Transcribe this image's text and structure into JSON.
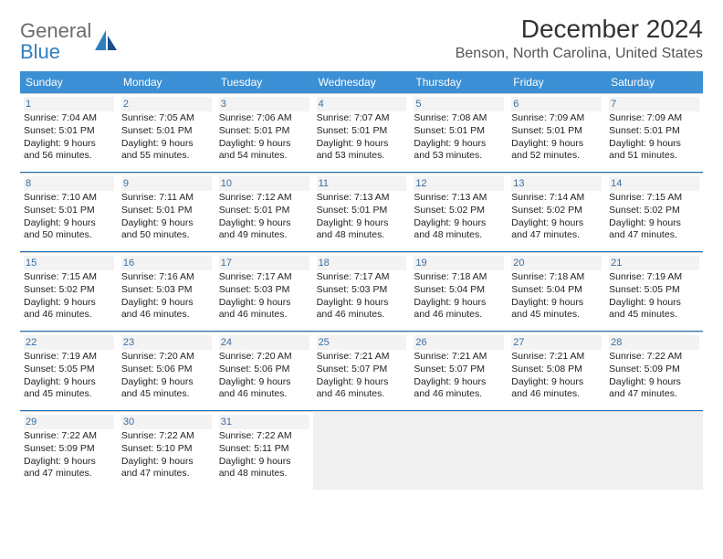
{
  "logo": {
    "top": "General",
    "bottom": "Blue"
  },
  "title": "December 2024",
  "subtitle": "Benson, North Carolina, United States",
  "colors": {
    "header_bg": "#3b8fd4",
    "week_divider": "#1f73b8",
    "cell_num": "#3b6ea0",
    "daynum_bg": "#f3f3f3",
    "blank_bg": "#f0f0f0"
  },
  "day_headers": [
    "Sunday",
    "Monday",
    "Tuesday",
    "Wednesday",
    "Thursday",
    "Friday",
    "Saturday"
  ],
  "days": [
    {
      "n": "1",
      "sr": "Sunrise: 7:04 AM",
      "ss": "Sunset: 5:01 PM",
      "d1": "Daylight: 9 hours",
      "d2": "and 56 minutes."
    },
    {
      "n": "2",
      "sr": "Sunrise: 7:05 AM",
      "ss": "Sunset: 5:01 PM",
      "d1": "Daylight: 9 hours",
      "d2": "and 55 minutes."
    },
    {
      "n": "3",
      "sr": "Sunrise: 7:06 AM",
      "ss": "Sunset: 5:01 PM",
      "d1": "Daylight: 9 hours",
      "d2": "and 54 minutes."
    },
    {
      "n": "4",
      "sr": "Sunrise: 7:07 AM",
      "ss": "Sunset: 5:01 PM",
      "d1": "Daylight: 9 hours",
      "d2": "and 53 minutes."
    },
    {
      "n": "5",
      "sr": "Sunrise: 7:08 AM",
      "ss": "Sunset: 5:01 PM",
      "d1": "Daylight: 9 hours",
      "d2": "and 53 minutes."
    },
    {
      "n": "6",
      "sr": "Sunrise: 7:09 AM",
      "ss": "Sunset: 5:01 PM",
      "d1": "Daylight: 9 hours",
      "d2": "and 52 minutes."
    },
    {
      "n": "7",
      "sr": "Sunrise: 7:09 AM",
      "ss": "Sunset: 5:01 PM",
      "d1": "Daylight: 9 hours",
      "d2": "and 51 minutes."
    },
    {
      "n": "8",
      "sr": "Sunrise: 7:10 AM",
      "ss": "Sunset: 5:01 PM",
      "d1": "Daylight: 9 hours",
      "d2": "and 50 minutes."
    },
    {
      "n": "9",
      "sr": "Sunrise: 7:11 AM",
      "ss": "Sunset: 5:01 PM",
      "d1": "Daylight: 9 hours",
      "d2": "and 50 minutes."
    },
    {
      "n": "10",
      "sr": "Sunrise: 7:12 AM",
      "ss": "Sunset: 5:01 PM",
      "d1": "Daylight: 9 hours",
      "d2": "and 49 minutes."
    },
    {
      "n": "11",
      "sr": "Sunrise: 7:13 AM",
      "ss": "Sunset: 5:01 PM",
      "d1": "Daylight: 9 hours",
      "d2": "and 48 minutes."
    },
    {
      "n": "12",
      "sr": "Sunrise: 7:13 AM",
      "ss": "Sunset: 5:02 PM",
      "d1": "Daylight: 9 hours",
      "d2": "and 48 minutes."
    },
    {
      "n": "13",
      "sr": "Sunrise: 7:14 AM",
      "ss": "Sunset: 5:02 PM",
      "d1": "Daylight: 9 hours",
      "d2": "and 47 minutes."
    },
    {
      "n": "14",
      "sr": "Sunrise: 7:15 AM",
      "ss": "Sunset: 5:02 PM",
      "d1": "Daylight: 9 hours",
      "d2": "and 47 minutes."
    },
    {
      "n": "15",
      "sr": "Sunrise: 7:15 AM",
      "ss": "Sunset: 5:02 PM",
      "d1": "Daylight: 9 hours",
      "d2": "and 46 minutes."
    },
    {
      "n": "16",
      "sr": "Sunrise: 7:16 AM",
      "ss": "Sunset: 5:03 PM",
      "d1": "Daylight: 9 hours",
      "d2": "and 46 minutes."
    },
    {
      "n": "17",
      "sr": "Sunrise: 7:17 AM",
      "ss": "Sunset: 5:03 PM",
      "d1": "Daylight: 9 hours",
      "d2": "and 46 minutes."
    },
    {
      "n": "18",
      "sr": "Sunrise: 7:17 AM",
      "ss": "Sunset: 5:03 PM",
      "d1": "Daylight: 9 hours",
      "d2": "and 46 minutes."
    },
    {
      "n": "19",
      "sr": "Sunrise: 7:18 AM",
      "ss": "Sunset: 5:04 PM",
      "d1": "Daylight: 9 hours",
      "d2": "and 46 minutes."
    },
    {
      "n": "20",
      "sr": "Sunrise: 7:18 AM",
      "ss": "Sunset: 5:04 PM",
      "d1": "Daylight: 9 hours",
      "d2": "and 45 minutes."
    },
    {
      "n": "21",
      "sr": "Sunrise: 7:19 AM",
      "ss": "Sunset: 5:05 PM",
      "d1": "Daylight: 9 hours",
      "d2": "and 45 minutes."
    },
    {
      "n": "22",
      "sr": "Sunrise: 7:19 AM",
      "ss": "Sunset: 5:05 PM",
      "d1": "Daylight: 9 hours",
      "d2": "and 45 minutes."
    },
    {
      "n": "23",
      "sr": "Sunrise: 7:20 AM",
      "ss": "Sunset: 5:06 PM",
      "d1": "Daylight: 9 hours",
      "d2": "and 45 minutes."
    },
    {
      "n": "24",
      "sr": "Sunrise: 7:20 AM",
      "ss": "Sunset: 5:06 PM",
      "d1": "Daylight: 9 hours",
      "d2": "and 46 minutes."
    },
    {
      "n": "25",
      "sr": "Sunrise: 7:21 AM",
      "ss": "Sunset: 5:07 PM",
      "d1": "Daylight: 9 hours",
      "d2": "and 46 minutes."
    },
    {
      "n": "26",
      "sr": "Sunrise: 7:21 AM",
      "ss": "Sunset: 5:07 PM",
      "d1": "Daylight: 9 hours",
      "d2": "and 46 minutes."
    },
    {
      "n": "27",
      "sr": "Sunrise: 7:21 AM",
      "ss": "Sunset: 5:08 PM",
      "d1": "Daylight: 9 hours",
      "d2": "and 46 minutes."
    },
    {
      "n": "28",
      "sr": "Sunrise: 7:22 AM",
      "ss": "Sunset: 5:09 PM",
      "d1": "Daylight: 9 hours",
      "d2": "and 47 minutes."
    },
    {
      "n": "29",
      "sr": "Sunrise: 7:22 AM",
      "ss": "Sunset: 5:09 PM",
      "d1": "Daylight: 9 hours",
      "d2": "and 47 minutes."
    },
    {
      "n": "30",
      "sr": "Sunrise: 7:22 AM",
      "ss": "Sunset: 5:10 PM",
      "d1": "Daylight: 9 hours",
      "d2": "and 47 minutes."
    },
    {
      "n": "31",
      "sr": "Sunrise: 7:22 AM",
      "ss": "Sunset: 5:11 PM",
      "d1": "Daylight: 9 hours",
      "d2": "and 48 minutes."
    }
  ]
}
